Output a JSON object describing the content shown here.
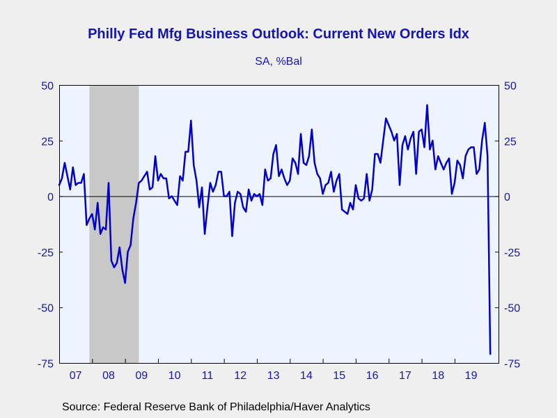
{
  "title": "Philly Fed Mfg Business Outlook: Current New Orders Idx",
  "subtitle": "SA, %Bal",
  "source": "Source:  Federal Reserve Bank of Philadelphia/Haver Analytics",
  "colors": {
    "background": "#efefef",
    "plot_background": "#eef4ff",
    "recession": "#c8c8c8",
    "line": "#0000c8",
    "text": "#1414b4",
    "zero_line": "#000000"
  },
  "chart_data": {
    "type": "line",
    "title": "Philly Fed Mfg Business Outlook: Current New Orders Idx",
    "subtitle": "SA, %Bal",
    "xlabel": "",
    "ylabel": "",
    "ylim": [
      -75,
      50
    ],
    "yticks": [
      50,
      25,
      0,
      -25,
      -50,
      -75
    ],
    "ytick_labels_left": [
      "50",
      "25",
      "0",
      "-25",
      "-50",
      "-75"
    ],
    "ytick_labels_right": [
      "50",
      "25",
      "0",
      "-25",
      "-50",
      "-75"
    ],
    "xlim": [
      2007.0,
      2020.333
    ],
    "xtick_labels": [
      "07",
      "08",
      "09",
      "10",
      "11",
      "12",
      "13",
      "14",
      "15",
      "16",
      "17",
      "18",
      "19"
    ],
    "grid": false,
    "legend": "none",
    "recession_shading": [
      {
        "start": 2007.917,
        "end": 2009.417
      }
    ],
    "series": [
      {
        "values": [
          [
            2007.0,
            5
          ],
          [
            2007.083,
            8
          ],
          [
            2007.167,
            15
          ],
          [
            2007.25,
            9
          ],
          [
            2007.333,
            3
          ],
          [
            2007.417,
            13
          ],
          [
            2007.5,
            5
          ],
          [
            2007.583,
            6
          ],
          [
            2007.667,
            6
          ],
          [
            2007.75,
            10
          ],
          [
            2007.833,
            -13
          ],
          [
            2007.917,
            -10
          ],
          [
            2008.0,
            -8
          ],
          [
            2008.083,
            -15
          ],
          [
            2008.167,
            -3
          ],
          [
            2008.25,
            -17
          ],
          [
            2008.333,
            -14
          ],
          [
            2008.417,
            -15
          ],
          [
            2008.5,
            6
          ],
          [
            2008.583,
            -29
          ],
          [
            2008.667,
            -32
          ],
          [
            2008.75,
            -30
          ],
          [
            2008.833,
            -23
          ],
          [
            2008.917,
            -33
          ],
          [
            2009.0,
            -39
          ],
          [
            2009.083,
            -25
          ],
          [
            2009.167,
            -22
          ],
          [
            2009.25,
            -10
          ],
          [
            2009.333,
            -3
          ],
          [
            2009.417,
            6
          ],
          [
            2009.5,
            7
          ],
          [
            2009.583,
            9
          ],
          [
            2009.667,
            11
          ],
          [
            2009.75,
            3
          ],
          [
            2009.833,
            4
          ],
          [
            2009.917,
            18
          ],
          [
            2010.0,
            7
          ],
          [
            2010.083,
            10
          ],
          [
            2010.167,
            8
          ],
          [
            2010.25,
            8
          ],
          [
            2010.333,
            -1
          ],
          [
            2010.417,
            0
          ],
          [
            2010.5,
            -2
          ],
          [
            2010.583,
            -4
          ],
          [
            2010.667,
            9
          ],
          [
            2010.75,
            7
          ],
          [
            2010.833,
            20
          ],
          [
            2010.917,
            20
          ],
          [
            2011.0,
            34
          ],
          [
            2011.083,
            14
          ],
          [
            2011.167,
            7
          ],
          [
            2011.25,
            -5
          ],
          [
            2011.333,
            4
          ],
          [
            2011.417,
            -17
          ],
          [
            2011.5,
            -5
          ],
          [
            2011.583,
            6
          ],
          [
            2011.667,
            2
          ],
          [
            2011.75,
            5
          ],
          [
            2011.833,
            11
          ],
          [
            2011.917,
            11
          ],
          [
            2012.0,
            0
          ],
          [
            2012.083,
            0
          ],
          [
            2012.167,
            2
          ],
          [
            2012.25,
            -18
          ],
          [
            2012.333,
            -3
          ],
          [
            2012.417,
            2
          ],
          [
            2012.5,
            1
          ],
          [
            2012.583,
            -5
          ],
          [
            2012.667,
            -7
          ],
          [
            2012.75,
            3
          ],
          [
            2012.833,
            -2
          ],
          [
            2012.917,
            1
          ],
          [
            2013.0,
            0
          ],
          [
            2013.083,
            1
          ],
          [
            2013.167,
            -4
          ],
          [
            2013.25,
            12
          ],
          [
            2013.333,
            7
          ],
          [
            2013.417,
            8
          ],
          [
            2013.5,
            19
          ],
          [
            2013.583,
            23
          ],
          [
            2013.667,
            9
          ],
          [
            2013.75,
            12
          ],
          [
            2013.833,
            8
          ],
          [
            2013.917,
            5
          ],
          [
            2014.0,
            7
          ],
          [
            2014.083,
            17
          ],
          [
            2014.167,
            15
          ],
          [
            2014.25,
            10
          ],
          [
            2014.333,
            28
          ],
          [
            2014.417,
            15
          ],
          [
            2014.5,
            14
          ],
          [
            2014.583,
            18
          ],
          [
            2014.667,
            30
          ],
          [
            2014.75,
            15
          ],
          [
            2014.833,
            10
          ],
          [
            2014.917,
            8
          ],
          [
            2015.0,
            1
          ],
          [
            2015.083,
            5
          ],
          [
            2015.167,
            6
          ],
          [
            2015.25,
            11
          ],
          [
            2015.333,
            2
          ],
          [
            2015.417,
            7
          ],
          [
            2015.5,
            10
          ],
          [
            2015.583,
            -6
          ],
          [
            2015.667,
            -7
          ],
          [
            2015.75,
            -8
          ],
          [
            2015.833,
            -3
          ],
          [
            2015.917,
            -6
          ],
          [
            2016.0,
            5
          ],
          [
            2016.083,
            -1
          ],
          [
            2016.167,
            -2
          ],
          [
            2016.25,
            -1
          ],
          [
            2016.333,
            10
          ],
          [
            2016.417,
            -2
          ],
          [
            2016.5,
            3
          ],
          [
            2016.583,
            19
          ],
          [
            2016.667,
            19
          ],
          [
            2016.75,
            15
          ],
          [
            2016.833,
            25
          ],
          [
            2016.917,
            35
          ],
          [
            2017.0,
            32
          ],
          [
            2017.083,
            29
          ],
          [
            2017.167,
            25
          ],
          [
            2017.25,
            28
          ],
          [
            2017.333,
            5
          ],
          [
            2017.417,
            23
          ],
          [
            2017.5,
            27
          ],
          [
            2017.583,
            21
          ],
          [
            2017.667,
            26
          ],
          [
            2017.75,
            29
          ],
          [
            2017.833,
            10
          ],
          [
            2017.917,
            29
          ],
          [
            2018.0,
            30
          ],
          [
            2018.083,
            22
          ],
          [
            2018.167,
            41
          ],
          [
            2018.25,
            21
          ],
          [
            2018.333,
            25
          ],
          [
            2018.417,
            12
          ],
          [
            2018.5,
            18
          ],
          [
            2018.583,
            15
          ],
          [
            2018.667,
            12
          ],
          [
            2018.75,
            15
          ],
          [
            2018.833,
            17
          ],
          [
            2018.917,
            1
          ],
          [
            2019.0,
            6
          ],
          [
            2019.083,
            16
          ],
          [
            2019.167,
            14
          ],
          [
            2019.25,
            8
          ],
          [
            2019.333,
            18
          ],
          [
            2019.417,
            21
          ],
          [
            2019.5,
            22
          ],
          [
            2019.583,
            22
          ],
          [
            2019.667,
            10
          ],
          [
            2019.75,
            12
          ],
          [
            2019.833,
            25
          ],
          [
            2019.917,
            33
          ],
          [
            2020.0,
            18
          ],
          [
            2020.083,
            -71
          ]
        ]
      }
    ]
  }
}
